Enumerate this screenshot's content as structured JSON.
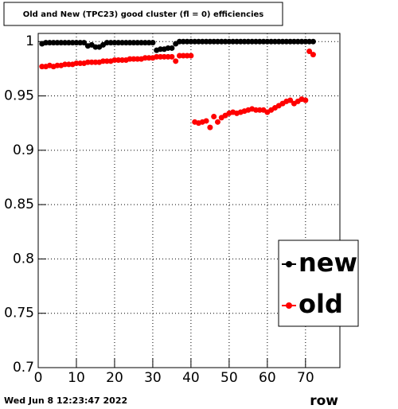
{
  "chart_data": {
    "type": "scatter",
    "title": "Old and New (TPC23) good cluster (fl = 0) efficiencies",
    "x_label": "row",
    "timestamp": "Wed Jun  8 12:23:47 2022",
    "x": [
      1,
      2,
      3,
      4,
      5,
      6,
      7,
      8,
      9,
      10,
      11,
      12,
      13,
      14,
      15,
      16,
      17,
      18,
      19,
      20,
      21,
      22,
      23,
      24,
      25,
      26,
      27,
      28,
      29,
      30,
      31,
      32,
      33,
      34,
      35,
      36,
      37,
      38,
      39,
      40,
      41,
      42,
      43,
      44,
      45,
      46,
      47,
      48,
      49,
      50,
      51,
      52,
      53,
      54,
      55,
      56,
      57,
      58,
      59,
      60,
      61,
      62,
      63,
      64,
      65,
      66,
      67,
      68,
      69,
      70,
      71,
      72
    ],
    "series": [
      {
        "name": "new",
        "color": "#000000",
        "values": [
          0.998,
          0.999,
          0.999,
          0.999,
          0.999,
          0.999,
          0.999,
          0.999,
          0.999,
          0.999,
          0.999,
          0.999,
          0.996,
          0.997,
          0.995,
          0.995,
          0.997,
          0.999,
          0.999,
          0.999,
          0.999,
          0.999,
          0.999,
          0.999,
          0.999,
          0.999,
          0.999,
          0.999,
          0.999,
          0.999,
          0.992,
          0.993,
          0.993,
          0.994,
          0.994,
          0.998,
          1,
          1,
          1,
          1,
          1,
          1,
          1,
          1,
          1,
          1,
          1,
          1,
          1,
          1,
          1,
          1,
          1,
          1,
          1,
          1,
          1,
          1,
          1,
          1,
          1,
          1,
          1,
          1,
          1,
          1,
          1,
          1,
          1,
          1,
          1,
          1
        ]
      },
      {
        "name": "old",
        "color": "#ff0000",
        "values": [
          0.977,
          0.977,
          0.978,
          0.977,
          0.978,
          0.978,
          0.979,
          0.979,
          0.979,
          0.98,
          0.98,
          0.98,
          0.981,
          0.981,
          0.981,
          0.981,
          0.982,
          0.982,
          0.982,
          0.983,
          0.983,
          0.983,
          0.983,
          0.984,
          0.984,
          0.984,
          0.984,
          0.985,
          0.985,
          0.985,
          0.986,
          0.986,
          0.986,
          0.986,
          0.986,
          0.982,
          0.987,
          0.987,
          0.987,
          0.987,
          0.926,
          0.925,
          0.926,
          0.927,
          0.921,
          0.931,
          0.926,
          0.93,
          0.932,
          0.934,
          0.935,
          0.934,
          0.935,
          0.936,
          0.937,
          0.938,
          0.937,
          0.937,
          0.937,
          0.935,
          0.937,
          0.939,
          0.941,
          0.943,
          0.945,
          0.946,
          0.943,
          0.945,
          0.947,
          0.946,
          0.991,
          0.988
        ]
      }
    ],
    "xlim": [
      0,
      79
    ],
    "xticks": [
      0,
      10,
      20,
      30,
      40,
      50,
      60,
      70
    ],
    "ylim": [
      0.7,
      1.0075
    ],
    "yticks": [
      0.7,
      0.75,
      0.8,
      0.85,
      0.9,
      0.95,
      1
    ],
    "grid": true,
    "legend": "lower right"
  }
}
